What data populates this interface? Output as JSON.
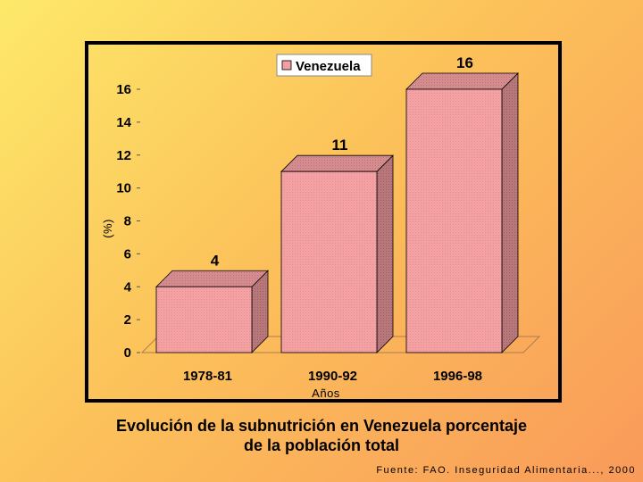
{
  "chart_data": {
    "type": "bar",
    "categories": [
      "1978-81",
      "1990-92",
      "1996-98"
    ],
    "series": [
      {
        "name": "Venezuela",
        "values": [
          4,
          11,
          16
        ],
        "color": "#f4a1a3"
      }
    ],
    "data_labels": [
      "4",
      "11",
      "16"
    ],
    "title": "",
    "xlabel": "Años",
    "ylabel": "(%)",
    "ylim": [
      0,
      16
    ],
    "yticks": [
      "0",
      "2",
      "4",
      "6",
      "8",
      "10",
      "12",
      "14",
      "16"
    ],
    "grid": false,
    "legend_position": "top-center",
    "style": "3d"
  },
  "caption": {
    "line1": "Evolución de la subnutrición en Venezuela porcentaje",
    "line2": "de la población total"
  },
  "source": "Fuente: FAO. Inseguridad Alimentaria..., 2000"
}
